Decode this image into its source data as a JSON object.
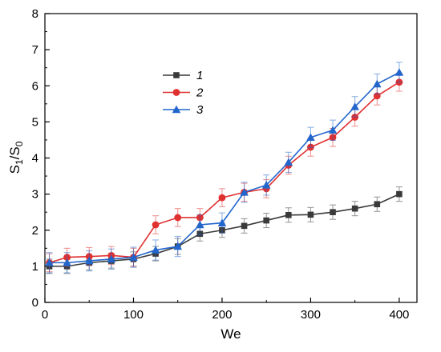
{
  "chart_data": {
    "type": "line",
    "xlabel": "We",
    "ylabel": {
      "main": "S",
      "sub1": "1",
      "sep": "/S",
      "sub2": "0"
    },
    "xlim": [
      0,
      420
    ],
    "ylim": [
      0,
      8
    ],
    "xticks": [
      0,
      100,
      200,
      300,
      400
    ],
    "yticks": [
      0,
      1,
      2,
      3,
      4,
      5,
      6,
      7,
      8
    ],
    "grid": false,
    "legend_position": "upper-left-center",
    "x": [
      5,
      25,
      50,
      75,
      100,
      125,
      150,
      175,
      200,
      225,
      250,
      275,
      300,
      325,
      350,
      375,
      400
    ],
    "series": [
      {
        "name": "1",
        "color": "#3a3a3a",
        "marker": "square",
        "values": [
          1.0,
          1.0,
          1.1,
          1.15,
          1.2,
          1.35,
          1.55,
          1.9,
          2.0,
          2.12,
          2.27,
          2.42,
          2.43,
          2.5,
          2.6,
          2.72,
          3.0
        ],
        "errors": [
          0.2,
          0.2,
          0.2,
          0.2,
          0.2,
          0.2,
          0.22,
          0.2,
          0.2,
          0.2,
          0.2,
          0.2,
          0.2,
          0.2,
          0.2,
          0.2,
          0.2
        ]
      },
      {
        "name": "2",
        "color": "#e03030",
        "marker": "circle",
        "values": [
          1.1,
          1.25,
          1.27,
          1.3,
          1.25,
          2.15,
          2.35,
          2.35,
          2.9,
          3.05,
          3.15,
          3.8,
          4.3,
          4.57,
          5.13,
          5.72,
          6.1
        ],
        "errors": [
          0.25,
          0.25,
          0.25,
          0.25,
          0.25,
          0.25,
          0.25,
          0.25,
          0.25,
          0.25,
          0.25,
          0.25,
          0.25,
          0.25,
          0.25,
          0.25,
          0.25
        ]
      },
      {
        "name": "3",
        "color": "#2266cc",
        "marker": "triangle",
        "values": [
          1.1,
          1.1,
          1.15,
          1.2,
          1.25,
          1.45,
          1.55,
          2.15,
          2.2,
          3.05,
          3.25,
          3.88,
          4.57,
          4.77,
          5.42,
          6.05,
          6.37
        ],
        "errors": [
          0.28,
          0.28,
          0.28,
          0.28,
          0.28,
          0.28,
          0.28,
          0.28,
          0.28,
          0.28,
          0.28,
          0.28,
          0.28,
          0.28,
          0.28,
          0.28,
          0.28
        ]
      }
    ]
  }
}
